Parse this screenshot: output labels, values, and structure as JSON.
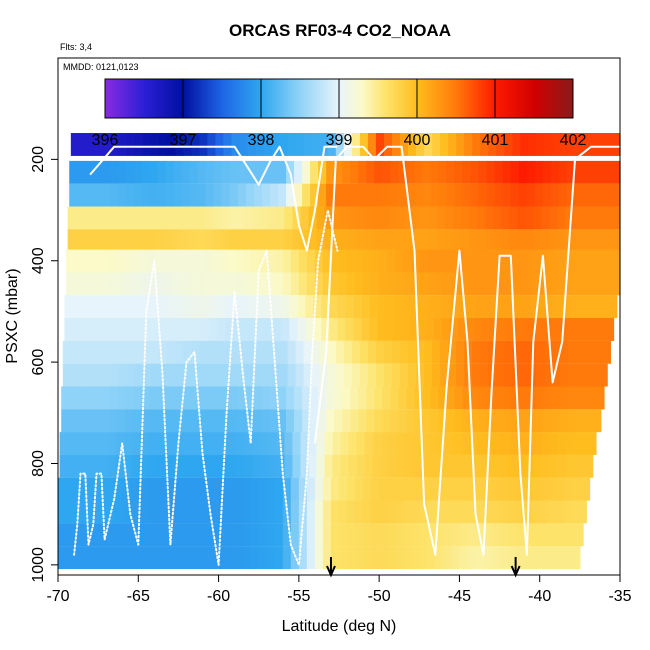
{
  "chart_data": {
    "type": "heatmap",
    "title": "ORCAS RF03-4 CO2_NOAA",
    "subtitle_flights": "Flts: 3,4",
    "subtitle_dates": "MMDD: 0121,0123",
    "xlabel": "Latitude (deg N)",
    "ylabel": "PSXC (mbar)",
    "xlim": [
      -70,
      -35
    ],
    "ylim": [
      1020,
      0
    ],
    "x_ticks": [
      -70,
      -65,
      -60,
      -55,
      -50,
      -45,
      -40,
      -35
    ],
    "x_tick_labels": [
      "-70",
      "-65",
      "-60",
      "-55",
      "-50",
      "-45",
      "-40",
      "-35"
    ],
    "y_ticks": [
      200,
      400,
      600,
      800,
      1000
    ],
    "y_tick_labels": [
      "200",
      "400",
      "600",
      "800",
      "1000"
    ],
    "colorbar": {
      "range": [
        396,
        402
      ],
      "ticks": [
        396,
        397,
        398,
        399,
        400,
        401,
        402
      ],
      "tick_labels": [
        "396",
        "397",
        "398",
        "399",
        "400",
        "401",
        "402"
      ],
      "stops": [
        {
          "value": 396.0,
          "color": "#8a2be2"
        },
        {
          "value": 396.5,
          "color": "#2b1fd6"
        },
        {
          "value": 397.0,
          "color": "#0010a0"
        },
        {
          "value": 397.5,
          "color": "#1e64e6"
        },
        {
          "value": 398.0,
          "color": "#2fa7f0"
        },
        {
          "value": 398.5,
          "color": "#8fd3f8"
        },
        {
          "value": 399.0,
          "color": "#e8f4fb"
        },
        {
          "value": 399.3,
          "color": "#fbfac8"
        },
        {
          "value": 399.6,
          "color": "#fde36a"
        },
        {
          "value": 400.0,
          "color": "#ffbd1e"
        },
        {
          "value": 400.5,
          "color": "#ff7a0a"
        },
        {
          "value": 401.0,
          "color": "#ff1a00"
        },
        {
          "value": 401.5,
          "color": "#d10000"
        },
        {
          "value": 402.0,
          "color": "#8a1a1a"
        }
      ]
    },
    "pressure_levels": [
      170,
      225,
      270,
      315,
      360,
      400,
      445,
      490,
      535,
      580,
      625,
      670,
      715,
      760,
      805,
      850,
      895,
      940,
      985
    ],
    "profile_column_latitudes": [
      -67,
      -64,
      -61,
      -59,
      -56,
      -53,
      -50,
      -47,
      -44,
      -41,
      -38
    ],
    "profile_values": [
      [
        396.6,
        396.9,
        397.2,
        397.8,
        398.0,
        398.1,
        400.8,
        399.7,
        400.5,
        400.9,
        400.8
      ],
      [
        397.9,
        398.0,
        398.2,
        398.3,
        398.3,
        400.3,
        400.7,
        400.5,
        400.7,
        401.0,
        400.8
      ],
      [
        398.2,
        398.1,
        398.2,
        398.4,
        398.8,
        400.5,
        400.5,
        400.4,
        400.6,
        400.8,
        400.6
      ],
      [
        399.5,
        399.5,
        399.5,
        399.4,
        399.5,
        400.3,
        400.4,
        400.3,
        400.5,
        400.7,
        400.5
      ],
      [
        399.8,
        399.8,
        399.7,
        399.8,
        399.8,
        400.1,
        400.2,
        400.2,
        400.3,
        400.4,
        400.3
      ],
      [
        399.3,
        399.2,
        399.2,
        399.3,
        399.4,
        400.0,
        400.1,
        400.3,
        400.3,
        400.3,
        400.2
      ],
      [
        399.2,
        399.1,
        399.2,
        399.2,
        399.3,
        399.9,
        400.1,
        400.2,
        400.3,
        400.3,
        400.2
      ],
      [
        399.0,
        399.0,
        399.1,
        399.0,
        399.1,
        399.7,
        400.0,
        400.1,
        400.2,
        400.2,
        400.1
      ],
      [
        398.9,
        398.9,
        398.9,
        398.8,
        398.8,
        399.5,
        400.0,
        400.1,
        400.4,
        400.5,
        400.5
      ],
      [
        398.8,
        398.8,
        398.7,
        398.7,
        398.7,
        399.3,
        399.8,
        400.0,
        400.5,
        400.6,
        400.5
      ],
      [
        398.7,
        398.6,
        398.6,
        398.6,
        398.6,
        399.2,
        399.6,
        400.0,
        400.5,
        400.6,
        400.5
      ],
      [
        398.5,
        398.4,
        398.4,
        398.4,
        398.5,
        399.2,
        399.6,
        400.0,
        400.4,
        400.5,
        400.4
      ],
      [
        398.3,
        398.2,
        398.2,
        398.2,
        398.3,
        399.3,
        399.7,
        399.9,
        400.1,
        400.2,
        400.1
      ],
      [
        398.2,
        398.1,
        398.1,
        398.1,
        398.2,
        399.4,
        399.8,
        399.9,
        400.0,
        400.1,
        400.0
      ],
      [
        398.1,
        398.0,
        398.0,
        398.0,
        398.1,
        399.5,
        399.8,
        399.9,
        399.9,
        400.0,
        399.9
      ],
      [
        398.0,
        397.9,
        397.9,
        397.9,
        398.0,
        399.5,
        399.8,
        399.8,
        399.8,
        399.9,
        399.8
      ],
      [
        398.0,
        397.9,
        397.9,
        397.9,
        398.0,
        399.6,
        399.8,
        399.7,
        399.7,
        399.8,
        399.7
      ],
      [
        397.9,
        397.9,
        397.9,
        397.9,
        398.0,
        399.6,
        399.7,
        399.6,
        399.5,
        399.6,
        399.6
      ],
      [
        397.9,
        397.9,
        397.9,
        397.9,
        398.0,
        399.6,
        399.7,
        399.6,
        399.4,
        399.5,
        399.5
      ]
    ],
    "row_extents_deg_N": [
      [
        -69.2,
        -35.0
      ],
      [
        -69.3,
        -35.0
      ],
      [
        -69.3,
        -35.0
      ],
      [
        -69.4,
        -35.0
      ],
      [
        -69.4,
        -35.0
      ],
      [
        -69.5,
        -35.0
      ],
      [
        -69.5,
        -35.0
      ],
      [
        -69.6,
        -35.2
      ],
      [
        -69.6,
        -35.4
      ],
      [
        -69.7,
        -35.6
      ],
      [
        -69.7,
        -35.8
      ],
      [
        -69.8,
        -36.0
      ],
      [
        -69.8,
        -36.2
      ],
      [
        -69.9,
        -36.5
      ],
      [
        -69.9,
        -36.7
      ],
      [
        -70.0,
        -36.9
      ],
      [
        -70.0,
        -37.1
      ],
      [
        -70.0,
        -37.3
      ],
      [
        -70.0,
        -37.5
      ]
    ],
    "flight_track_dotted": [
      [
        -69.0,
        980
      ],
      [
        -68.8,
        920
      ],
      [
        -68.6,
        820
      ],
      [
        -68.3,
        820
      ],
      [
        -68.1,
        960
      ],
      [
        -67.8,
        920
      ],
      [
        -67.6,
        820
      ],
      [
        -67.3,
        820
      ],
      [
        -67.1,
        950
      ],
      [
        -66.5,
        870
      ],
      [
        -66.0,
        760
      ],
      [
        -65.5,
        900
      ],
      [
        -65.0,
        960
      ],
      [
        -64.5,
        500
      ],
      [
        -64.0,
        400
      ],
      [
        -63.5,
        620
      ],
      [
        -63.0,
        960
      ],
      [
        -62.5,
        760
      ],
      [
        -62.0,
        600
      ],
      [
        -61.5,
        580
      ],
      [
        -61.0,
        780
      ],
      [
        -60.5,
        900
      ],
      [
        -60.0,
        1000
      ],
      [
        -59.5,
        700
      ],
      [
        -59.0,
        460
      ],
      [
        -58.5,
        620
      ],
      [
        -58.0,
        760
      ],
      [
        -57.5,
        420
      ],
      [
        -57.0,
        380
      ],
      [
        -56.5,
        600
      ],
      [
        -56.0,
        820
      ],
      [
        -55.5,
        960
      ],
      [
        -55.0,
        1000
      ],
      [
        -54.5,
        820
      ],
      [
        -54.2,
        600
      ],
      [
        -53.8,
        400
      ],
      [
        -53.2,
        300
      ],
      [
        -52.6,
        380
      ]
    ],
    "flight_track_south": [
      [
        -68.0,
        230
      ],
      [
        -66.5,
        175
      ],
      [
        -64.0,
        175
      ],
      [
        -61.0,
        175
      ],
      [
        -59.0,
        175
      ],
      [
        -57.5,
        250
      ],
      [
        -56.8,
        205
      ],
      [
        -56.2,
        175
      ],
      [
        -55.5,
        230
      ],
      [
        -55.0,
        330
      ],
      [
        -54.5,
        380
      ],
      [
        -54.0,
        300
      ],
      [
        -53.4,
        175
      ],
      [
        -52.6,
        175
      ]
    ],
    "flight_track_north": [
      [
        -54.0,
        760
      ],
      [
        -53.3,
        580
      ],
      [
        -52.7,
        200
      ],
      [
        -52.0,
        175
      ],
      [
        -51.0,
        175
      ],
      [
        -50.3,
        200
      ],
      [
        -49.5,
        175
      ],
      [
        -48.6,
        175
      ],
      [
        -47.8,
        380
      ],
      [
        -47.2,
        880
      ],
      [
        -46.5,
        980
      ],
      [
        -45.8,
        650
      ],
      [
        -45.0,
        380
      ],
      [
        -44.5,
        560
      ],
      [
        -44.0,
        900
      ],
      [
        -43.5,
        980
      ],
      [
        -43.0,
        660
      ],
      [
        -42.5,
        390
      ],
      [
        -41.8,
        390
      ],
      [
        -41.2,
        820
      ],
      [
        -40.8,
        980
      ],
      [
        -40.4,
        560
      ],
      [
        -39.8,
        390
      ],
      [
        -39.2,
        640
      ],
      [
        -38.6,
        560
      ],
      [
        -37.8,
        200
      ],
      [
        -36.8,
        175
      ],
      [
        -35.0,
        175
      ]
    ],
    "arrows_deg_N": [
      -53.0,
      -41.5
    ]
  }
}
